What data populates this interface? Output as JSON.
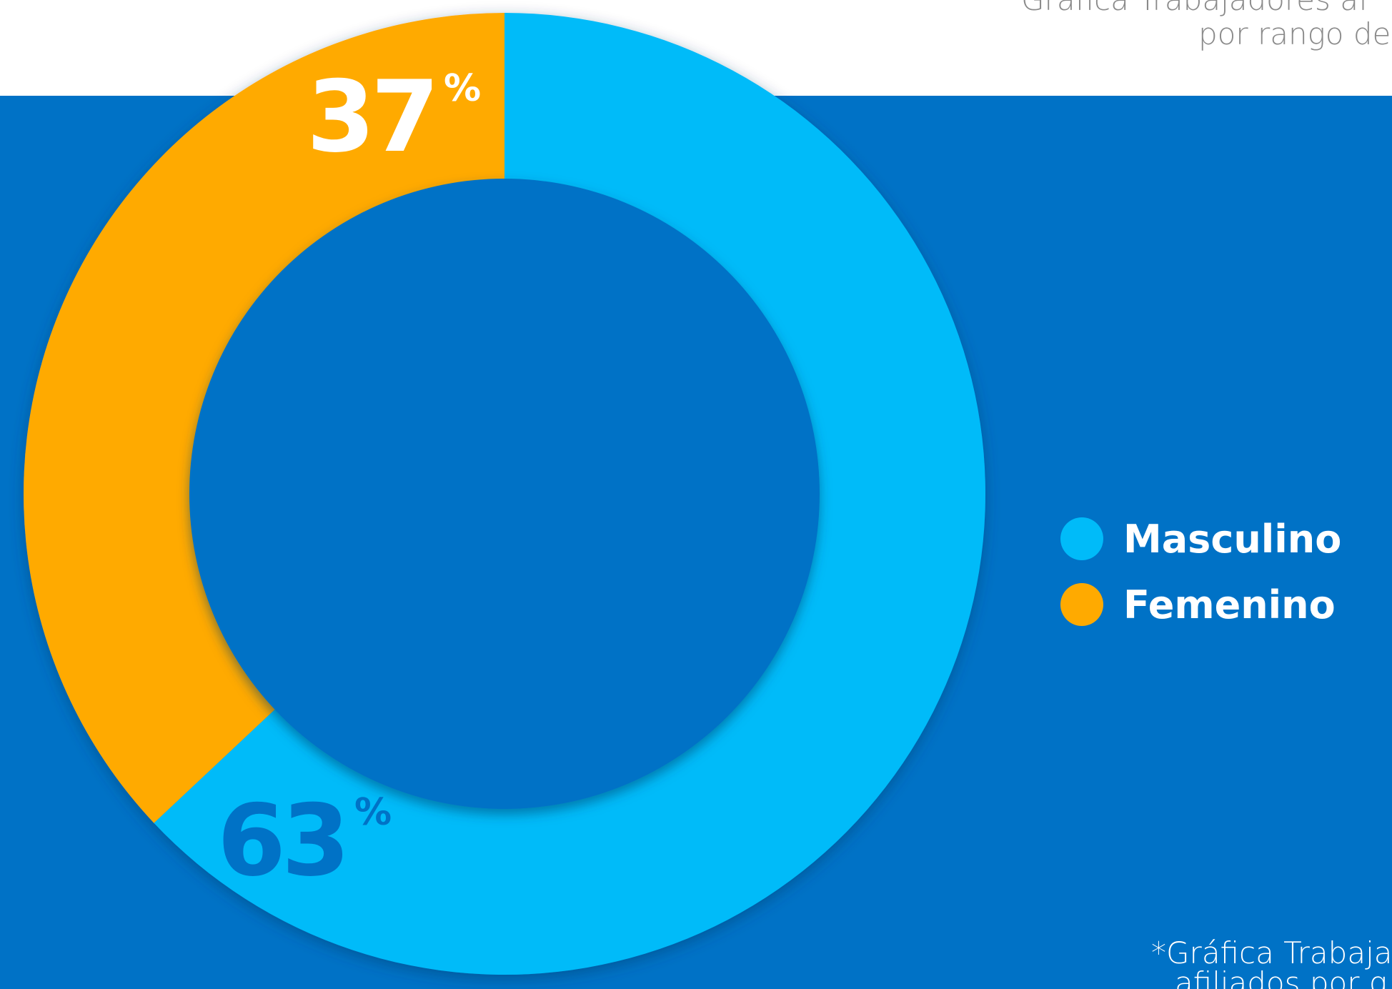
{
  "chart_data": {
    "type": "pie",
    "title": [
      "Gráfica Trabajadores af",
      "por rango de"
    ],
    "note": [
      "*Gráfica Trabaja",
      "afiliados por g"
    ],
    "categories": [
      "Masculino",
      "Femenino"
    ],
    "values": [
      63,
      37
    ],
    "value_labels": [
      "63%",
      "37%"
    ],
    "colors": [
      "#00bbf9",
      "#ffaa00"
    ],
    "label_colors": [
      "#0072c6",
      "#ffffff"
    ],
    "background": "#0072c6",
    "legend": "right"
  }
}
